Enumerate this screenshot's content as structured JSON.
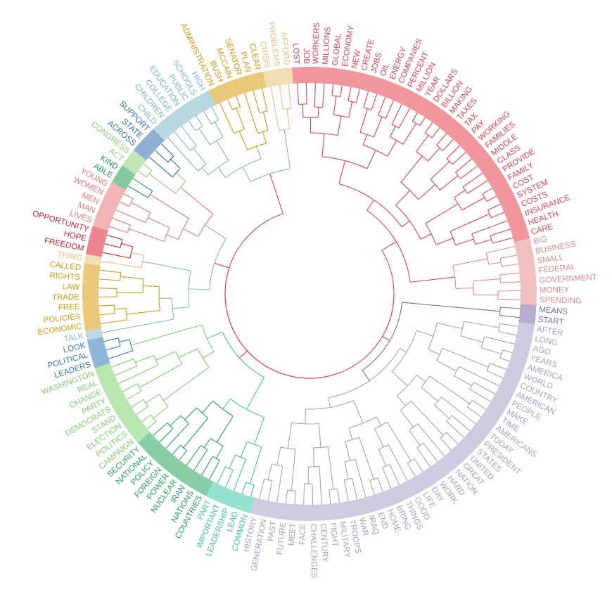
{
  "chart_data": {
    "type": "circular-dendrogram",
    "title": "",
    "clusters": [
      {
        "name": "",
        "color": "#e8404f",
        "words": [
          "LOST",
          "JOB",
          "WORKERS",
          "MILLIONS",
          "GLOBAL",
          "ECONOMY",
          "NEW",
          "CREATE",
          "JOBS",
          "OIL",
          "ENERGY",
          "COMPANIES",
          "PERCENT",
          "MILLION",
          "YEAR",
          "DOLLARS",
          "BILLION",
          "MAKING",
          "TAXES",
          "TAX",
          "PAY",
          "WORKING",
          "FAMILIES",
          "MIDDLE",
          "CLASS",
          "PROVIDE",
          "FAMILY",
          "COST",
          "SYSTEM",
          "COSTS",
          "INSURANCE",
          "HEALTH",
          "CARE"
        ]
      },
      {
        "name": "",
        "color": "#e88a8a",
        "words": [
          "BIG",
          "BUSINESS",
          "SMALL",
          "FEDERAL",
          "GOVERNMENT",
          "MONEY",
          "SPENDING"
        ]
      },
      {
        "name": "",
        "color": "#7b68a8",
        "words": [
          "MEANS",
          "START"
        ]
      },
      {
        "name": "",
        "color": "#a99fc9",
        "words": [
          "AFTER",
          "LONG",
          "AGO",
          "YEARS",
          "AMERICA",
          "WORLD",
          "COUNTRY",
          "AMERICAN",
          "PEOPLE",
          "MAKE",
          "TIME",
          "AMERICANS",
          "TODAY",
          "PRESIDENT",
          "STATES",
          "UNITED",
          "GREAT",
          "NATION",
          "HARD",
          "WORK",
          "DAY",
          "LIFE",
          "GOOD",
          "THINGS",
          "BRING",
          "HOME",
          "END",
          "IRAQ",
          "WAR",
          "TROOPS",
          "MILITARY",
          "FIGHT",
          "CENTURY",
          "CHALLENGES",
          "FACE",
          "MEET",
          "FUTURE",
          "PAST",
          "GENERATION",
          "HISTORY"
        ]
      },
      {
        "name": "",
        "color": "#3ec7a8",
        "words": [
          "COMMON",
          "LEAD",
          "LEADERSHIP",
          "IMPORTANT",
          "PART"
        ]
      },
      {
        "name": "",
        "color": "#26a65b",
        "words": [
          "COUNTRIES",
          "NATIONS",
          "IRAN",
          "NUCLEAR",
          "POWER",
          "FOREIGN",
          "POLICY",
          "NATIONAL",
          "SECURITY"
        ]
      },
      {
        "name": "",
        "color": "#7fcf6e",
        "words": [
          "CAMPAIGN",
          "POLITICS",
          "ELECTION",
          "STAND",
          "DEMOCRATS",
          "PARTY",
          "CHANGE",
          "REAL",
          "WASHINGTON"
        ]
      },
      {
        "name": "",
        "color": "#2f78b5",
        "words": [
          "LEADERS",
          "POLITICAL",
          "LOOK"
        ]
      },
      {
        "name": "",
        "color": "#86b8c8",
        "words": [
          "TALK"
        ]
      },
      {
        "name": "",
        "color": "#d99a0b",
        "words": [
          "ECONOMIC",
          "POLICIES",
          "FREE",
          "TRADE",
          "LAW",
          "RIGHTS",
          "CALLED"
        ]
      },
      {
        "name": "",
        "color": "#e8c07a",
        "words": [
          "THING"
        ]
      },
      {
        "name": "",
        "color": "#e02030",
        "words": [
          "FREEDOM",
          "HOPE",
          "OPPORTUNITY"
        ]
      },
      {
        "name": "",
        "color": "#e87878",
        "words": [
          "LIVES",
          "MAN",
          "MEN",
          "WOMEN",
          "YOUNG"
        ]
      },
      {
        "name": "",
        "color": "#1f9e50",
        "words": [
          "ABLE",
          "KIND"
        ]
      },
      {
        "name": "",
        "color": "#8fd07a",
        "words": [
          "ACT",
          "CONGRESS"
        ]
      },
      {
        "name": "",
        "color": "#2f6fae",
        "words": [
          "ACROSS",
          "STATE",
          "SUPPORT"
        ]
      },
      {
        "name": "",
        "color": "#7fb6c6",
        "words": [
          "CHILD",
          "CHILDREN",
          "COLLEGE",
          "EDUCATION",
          "PUBLIC",
          "SCHOOLS",
          "HIGH"
        ]
      },
      {
        "name": "",
        "color": "#d99a0b",
        "words": [
          "ADMINISTRATION",
          "BUSH",
          "MCCAIN",
          "SENATOR",
          "PLAN",
          "CLEAR"
        ]
      },
      {
        "name": "",
        "color": "#e8c07a",
        "words": [
          "CRISIS",
          "PROBLEMS",
          "AFFORD"
        ]
      }
    ]
  }
}
